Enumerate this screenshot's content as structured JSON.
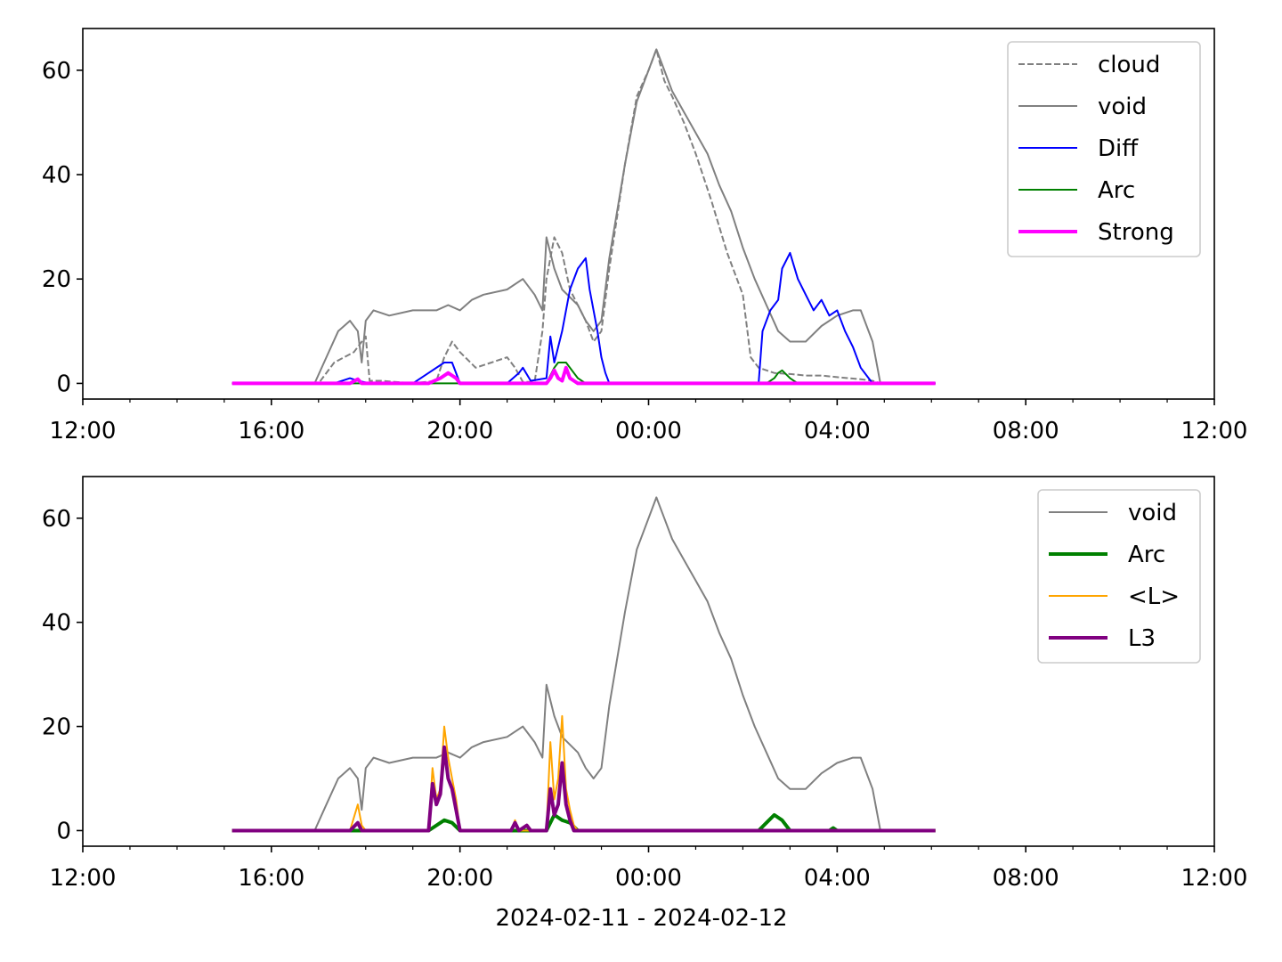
{
  "chart_data": [
    {
      "type": "line",
      "xlabel": "",
      "ylabel": "",
      "xlim": [
        "2024-02-11 12:00",
        "2024-02-12 12:00"
      ],
      "ylim": [
        -3,
        68
      ],
      "xticks": [
        "12:00",
        "16:00",
        "20:00",
        "00:00",
        "04:00",
        "08:00",
        "12:00"
      ],
      "yticks": [
        "0",
        "20",
        "40",
        "60"
      ],
      "legend_position": "top-right",
      "legend": [
        "cloud",
        "void",
        "Diff",
        "Arc",
        "Strong"
      ],
      "series": [
        {
          "name": "cloud",
          "color": "#808080",
          "style": "dashed",
          "x": [
            "15:10",
            "17:00",
            "17:20",
            "17:45",
            "18:00",
            "18:05",
            "18:20",
            "19:00",
            "19:30",
            "19:40",
            "19:50",
            "20:00",
            "20:20",
            "20:40",
            "21:00",
            "21:10",
            "21:20",
            "21:35",
            "21:45",
            "21:50",
            "22:00",
            "22:10",
            "22:20",
            "22:40",
            "22:50",
            "23:00",
            "23:10",
            "23:30",
            "23:45",
            "00:00",
            "00:10",
            "00:20",
            "00:30",
            "00:45",
            "01:00",
            "01:20",
            "01:40",
            "02:00",
            "02:10",
            "02:20",
            "02:40",
            "03:00",
            "03:20",
            "03:40",
            "04:00",
            "04:15",
            "04:30",
            "04:45",
            "04:55",
            "06:05"
          ],
          "y": [
            0,
            0,
            4,
            6,
            9,
            0.5,
            0.5,
            0,
            0.5,
            5,
            8,
            6,
            3,
            4,
            5,
            3,
            0.3,
            0.3,
            10,
            20,
            28,
            25,
            18,
            12,
            8,
            10,
            22,
            42,
            55,
            60,
            64,
            58,
            55,
            50,
            44,
            35,
            25,
            17,
            5,
            3,
            2,
            1.8,
            1.5,
            1.5,
            1.2,
            1,
            0.8,
            0.5,
            0,
            0
          ]
        },
        {
          "name": "void",
          "color": "#808080",
          "style": "solid",
          "x": [
            "15:10",
            "16:55",
            "17:10",
            "17:25",
            "17:40",
            "17:50",
            "17:55",
            "18:00",
            "18:10",
            "18:30",
            "19:00",
            "19:30",
            "19:45",
            "20:00",
            "20:15",
            "20:30",
            "21:00",
            "21:20",
            "21:35",
            "21:45",
            "21:50",
            "22:00",
            "22:10",
            "22:30",
            "22:40",
            "22:50",
            "23:00",
            "23:10",
            "23:30",
            "23:45",
            "00:00",
            "00:10",
            "00:20",
            "00:30",
            "00:45",
            "01:00",
            "01:15",
            "01:30",
            "01:45",
            "02:00",
            "02:15",
            "02:30",
            "02:45",
            "03:00",
            "03:20",
            "03:40",
            "04:00",
            "04:20",
            "04:30",
            "04:45",
            "04:55",
            "06:05"
          ],
          "y": [
            0,
            0,
            5,
            10,
            12,
            10,
            4,
            12,
            14,
            13,
            14,
            14,
            15,
            14,
            16,
            17,
            18,
            20,
            17,
            14,
            28,
            22,
            18,
            15,
            12,
            10,
            12,
            24,
            42,
            54,
            60,
            64,
            60,
            56,
            52,
            48,
            44,
            38,
            33,
            26,
            20,
            15,
            10,
            8,
            8,
            11,
            13,
            14,
            14,
            8,
            0,
            0
          ]
        },
        {
          "name": "Diff",
          "color": "#0000ff",
          "style": "solid",
          "x": [
            "15:10",
            "17:20",
            "17:40",
            "17:50",
            "18:05",
            "19:00",
            "19:20",
            "19:40",
            "19:50",
            "20:00",
            "21:00",
            "21:15",
            "21:20",
            "21:30",
            "21:50",
            "21:55",
            "22:00",
            "22:10",
            "22:20",
            "22:30",
            "22:40",
            "22:45",
            "22:50",
            "22:55",
            "23:00",
            "23:05",
            "23:10",
            "02:20",
            "02:25",
            "02:35",
            "02:45",
            "02:50",
            "03:00",
            "03:10",
            "03:20",
            "03:30",
            "03:40",
            "03:50",
            "04:00",
            "04:10",
            "04:20",
            "04:30",
            "04:45",
            "06:05"
          ],
          "y": [
            0,
            0,
            1,
            0.5,
            0,
            0,
            2,
            4,
            4,
            0,
            0,
            2,
            3,
            0.5,
            1,
            9,
            4,
            10,
            18,
            22,
            24,
            18,
            14,
            10,
            5,
            2,
            0,
            0,
            10,
            14,
            16,
            22,
            25,
            20,
            17,
            14,
            16,
            13,
            14,
            10,
            7,
            3,
            0,
            0
          ]
        },
        {
          "name": "Arc",
          "color": "#008000",
          "style": "solid",
          "x": [
            "15:10",
            "21:50",
            "22:00",
            "22:05",
            "22:15",
            "22:25",
            "22:30",
            "22:40",
            "02:30",
            "02:40",
            "02:45",
            "02:50",
            "03:00",
            "03:10",
            "06:05"
          ],
          "y": [
            0,
            0,
            3,
            4,
            4,
            2,
            1,
            0,
            0,
            1,
            2,
            2.5,
            1,
            0,
            0
          ]
        },
        {
          "name": "Strong",
          "color": "#ff00ff",
          "style": "solid",
          "width": "thick",
          "x": [
            "15:10",
            "17:40",
            "17:50",
            "17:55",
            "19:20",
            "19:35",
            "19:45",
            "19:55",
            "20:00",
            "21:50",
            "21:55",
            "22:00",
            "22:05",
            "22:10",
            "22:15",
            "22:20",
            "22:25",
            "22:30",
            "06:05"
          ],
          "y": [
            0,
            0,
            0.8,
            0,
            0,
            1,
            2,
            1,
            0,
            0,
            1,
            2.5,
            1,
            0.5,
            3,
            1,
            0.5,
            0,
            0
          ]
        }
      ]
    },
    {
      "type": "line",
      "xlabel": "2024-02-11 - 2024-02-12",
      "ylabel": "",
      "xlim": [
        "2024-02-11 12:00",
        "2024-02-12 12:00"
      ],
      "ylim": [
        -3,
        68
      ],
      "xticks": [
        "12:00",
        "16:00",
        "20:00",
        "00:00",
        "04:00",
        "08:00",
        "12:00"
      ],
      "yticks": [
        "0",
        "20",
        "40",
        "60"
      ],
      "legend_position": "top-right",
      "legend": [
        "void",
        "Arc",
        "<L>",
        "L3"
      ],
      "series": [
        {
          "name": "void",
          "color": "#808080",
          "style": "solid",
          "x": [
            "15:10",
            "16:55",
            "17:10",
            "17:25",
            "17:40",
            "17:50",
            "17:55",
            "18:00",
            "18:10",
            "18:30",
            "19:00",
            "19:30",
            "19:45",
            "20:00",
            "20:15",
            "20:30",
            "21:00",
            "21:20",
            "21:35",
            "21:45",
            "21:50",
            "22:00",
            "22:10",
            "22:30",
            "22:40",
            "22:50",
            "23:00",
            "23:10",
            "23:30",
            "23:45",
            "00:00",
            "00:10",
            "00:20",
            "00:30",
            "00:45",
            "01:00",
            "01:15",
            "01:30",
            "01:45",
            "02:00",
            "02:15",
            "02:30",
            "02:45",
            "03:00",
            "03:20",
            "03:40",
            "04:00",
            "04:20",
            "04:30",
            "04:45",
            "04:55",
            "06:05"
          ],
          "y": [
            0,
            0,
            5,
            10,
            12,
            10,
            4,
            12,
            14,
            13,
            14,
            14,
            15,
            14,
            16,
            17,
            18,
            20,
            17,
            14,
            28,
            22,
            18,
            15,
            12,
            10,
            12,
            24,
            42,
            54,
            60,
            64,
            60,
            56,
            52,
            48,
            44,
            38,
            33,
            26,
            20,
            15,
            10,
            8,
            8,
            11,
            13,
            14,
            14,
            8,
            0,
            0
          ]
        },
        {
          "name": "Arc",
          "color": "#008000",
          "style": "solid",
          "width": "thick",
          "x": [
            "15:10",
            "19:20",
            "19:40",
            "19:50",
            "20:00",
            "21:50",
            "22:00",
            "22:10",
            "22:20",
            "22:30",
            "02:20",
            "02:30",
            "02:40",
            "02:50",
            "03:00",
            "03:50",
            "03:55",
            "04:00",
            "06:05"
          ],
          "y": [
            0,
            0,
            2,
            1.5,
            0,
            0,
            3,
            2,
            1.5,
            0,
            0,
            1.5,
            3,
            2,
            0,
            0,
            0.5,
            0,
            0
          ]
        },
        {
          "name": "<L>",
          "color": "#ffa500",
          "style": "solid",
          "x": [
            "15:10",
            "17:40",
            "17:50",
            "17:55",
            "18:00",
            "19:20",
            "19:25",
            "19:30",
            "19:35",
            "19:40",
            "19:45",
            "19:50",
            "19:55",
            "20:00",
            "21:05",
            "21:10",
            "21:15",
            "21:50",
            "21:55",
            "22:00",
            "22:05",
            "22:10",
            "22:15",
            "22:20",
            "22:25",
            "22:30",
            "06:05"
          ],
          "y": [
            0,
            0,
            5,
            1,
            0,
            0,
            12,
            6,
            8,
            20,
            14,
            10,
            6,
            0,
            0,
            2,
            0,
            0,
            17,
            6,
            10,
            22,
            8,
            4,
            1,
            0,
            0
          ]
        },
        {
          "name": "L3",
          "color": "#800080",
          "style": "solid",
          "width": "thick",
          "x": [
            "15:10",
            "17:40",
            "17:50",
            "17:55",
            "19:20",
            "19:25",
            "19:30",
            "19:35",
            "19:40",
            "19:45",
            "19:50",
            "19:55",
            "20:00",
            "21:05",
            "21:10",
            "21:15",
            "21:25",
            "21:30",
            "21:50",
            "21:55",
            "22:00",
            "22:05",
            "22:10",
            "22:15",
            "22:20",
            "22:25",
            "06:05"
          ],
          "y": [
            0,
            0,
            1.5,
            0,
            0,
            9,
            5,
            7,
            16,
            10,
            8,
            4,
            0,
            0,
            1.5,
            0,
            1,
            0,
            0,
            8,
            3,
            5,
            13,
            5,
            2,
            0,
            0
          ]
        }
      ]
    }
  ]
}
